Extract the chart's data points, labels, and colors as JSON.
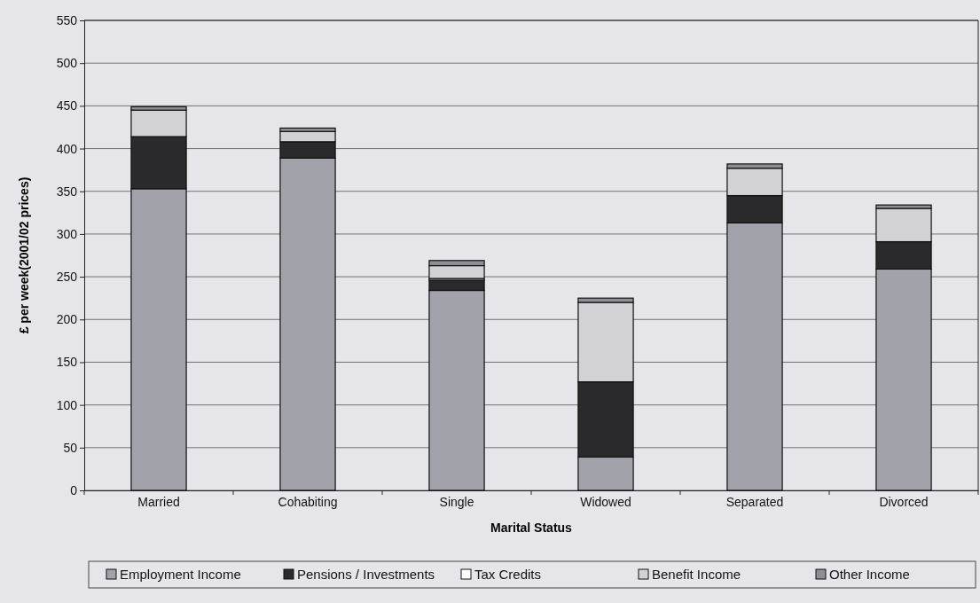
{
  "chart_data": {
    "type": "bar",
    "stacked": true,
    "xlabel": "Marital Status",
    "ylabel": "£ per week(2001/02 prices)",
    "categories": [
      "Married",
      "Cohabiting",
      "Single",
      "Widowed",
      "Separated",
      "Divorced"
    ],
    "series": [
      {
        "name": "Employment Income",
        "color": "#a2a2aa",
        "values": [
          353,
          389,
          234,
          39,
          313,
          259
        ]
      },
      {
        "name": "Pensions / Investments",
        "color": "#2a2a2c",
        "values": [
          61,
          19,
          12,
          88,
          32,
          32
        ]
      },
      {
        "name": "Tax Credits",
        "color": "#ffffff",
        "values": [
          null,
          null,
          2,
          0,
          null,
          null
        ]
      },
      {
        "name": "Benefit Income",
        "color": "#d2d2d6",
        "values": [
          31,
          12,
          15,
          93,
          32,
          39
        ]
      },
      {
        "name": "Other Income",
        "color": "#8e8e96",
        "values": [
          4,
          4,
          6,
          5,
          5,
          4
        ]
      }
    ],
    "ylim": [
      0,
      550
    ],
    "yticks": [
      0,
      50,
      100,
      150,
      200,
      250,
      300,
      350,
      400,
      450,
      500,
      550
    ],
    "grid": "y",
    "legend": "bottom"
  }
}
